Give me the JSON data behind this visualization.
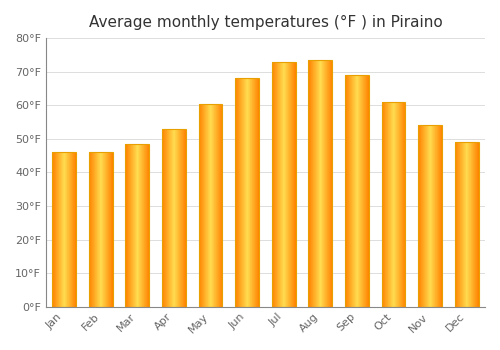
{
  "title": "Average monthly temperatures (°F ) in Piraino",
  "months": [
    "Jan",
    "Feb",
    "Mar",
    "Apr",
    "May",
    "Jun",
    "Jul",
    "Aug",
    "Sep",
    "Oct",
    "Nov",
    "Dec"
  ],
  "values": [
    46,
    46,
    48.5,
    53,
    60.5,
    68,
    73,
    73.5,
    69,
    61,
    54,
    49
  ],
  "bar_edge_color": "#E8A000",
  "bar_center_color": "#FFE066",
  "bar_outer_color": "#FFA500",
  "background_color": "#FFFFFF",
  "plot_bg_color": "#FFFFFF",
  "grid_color": "#DDDDDD",
  "ylim": [
    0,
    80
  ],
  "yticks": [
    0,
    10,
    20,
    30,
    40,
    50,
    60,
    70,
    80
  ],
  "ytick_labels": [
    "0°F",
    "10°F",
    "20°F",
    "30°F",
    "40°F",
    "50°F",
    "60°F",
    "70°F",
    "80°F"
  ],
  "title_fontsize": 11,
  "tick_fontsize": 8,
  "figsize": [
    5.0,
    3.5
  ],
  "dpi": 100,
  "bar_width": 0.65
}
